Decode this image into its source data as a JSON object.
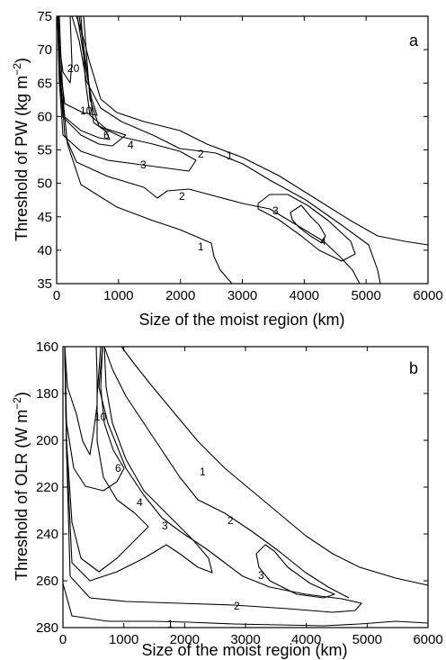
{
  "chart_data": [
    {
      "type": "contour",
      "panel_label": "a",
      "xlabel": "Size of the moist region (km)",
      "ylabel": "Threshold of PW (kg m^-2)",
      "xlim": [
        0,
        6000
      ],
      "ylim": [
        35,
        75
      ],
      "xticks": [
        "0",
        "1000",
        "2000",
        "3000",
        "4000",
        "5000",
        "6000"
      ],
      "yticks": [
        "35",
        "40",
        "45",
        "50",
        "55",
        "60",
        "65",
        "70",
        "75"
      ],
      "contours": [
        {
          "level": "1",
          "lines": [
            [
              [
                20,
                75
              ],
              [
                40,
                60
              ],
              [
                90,
                52
              ],
              [
                300,
                48
              ],
              [
                800,
                45
              ],
              [
                1500,
                43
              ],
              [
                2000,
                41
              ],
              [
                2300,
                40
              ],
              [
                2600,
                38.5
              ],
              [
                2900,
                35
              ]
            ],
            [
              [
                330,
                75
              ],
              [
                600,
                69
              ],
              [
                1000,
                64
              ],
              [
                1500,
                61
              ],
              [
                2000,
                58.5
              ],
              [
                2500,
                56
              ],
              [
                3000,
                54
              ],
              [
                3500,
                51
              ],
              [
                4000,
                47.5
              ],
              [
                4500,
                44.5
              ],
              [
                5000,
                42
              ],
              [
                5500,
                41
              ],
              [
                6000,
                40
              ]
            ]
          ],
          "labels": [
            [
              2300,
              40.8
            ],
            [
              2700,
              56.2
            ]
          ]
        },
        {
          "level": "2",
          "lines": [
            [
              [
                10,
                75
              ],
              [
                40,
                60
              ],
              [
                100,
                55
              ],
              [
                400,
                52
              ],
              [
                1000,
                49
              ],
              [
                1400,
                48
              ],
              [
                1600,
                46.5
              ],
              [
                1700,
                49
              ],
              [
                2100,
                48
              ],
              [
                2500,
                47
              ],
              [
                3000,
                46
              ],
              [
                3400,
                45
              ],
              [
                4000,
                41.5
              ],
              [
                4600,
                38
              ],
              [
                5000,
                37
              ],
              [
                5300,
                35
              ]
            ],
            [
              [
                260,
                75
              ],
              [
                500,
                67
              ],
              [
                900,
                61
              ],
              [
                1500,
                58
              ],
              [
                2000,
                56.5
              ],
              [
                2400,
                55.5
              ],
              [
                2800,
                54
              ],
              [
                3200,
                51.5
              ],
              [
                3800,
                48
              ],
              [
                4400,
                44.5
              ],
              [
                5000,
                41.5
              ],
              [
                5500,
                39
              ],
              [
                5900,
                35
              ]
            ]
          ],
          "labels": [
            [
              2000,
              47.2
            ],
            [
              2200,
              55.3
            ]
          ]
        },
        {
          "level": "3",
          "lines": [
            [
              [
                5,
                75
              ],
              [
                30,
                60
              ],
              [
                100,
                56
              ],
              [
                500,
                53
              ],
              [
                1000,
                53
              ],
              [
                1500,
                52.5
              ],
              [
                2000,
                52
              ],
              [
                2200,
                51.5
              ],
              [
                1900,
                54
              ],
              [
                1400,
                55.5
              ],
              [
                800,
                57
              ],
              [
                300,
                60
              ],
              [
                150,
                75
              ]
            ],
            [
              [
                3400,
                46.5
              ],
              [
                3700,
                47
              ],
              [
                4200,
                45
              ],
              [
                4600,
                41
              ],
              [
                4400,
                39
              ],
              [
                4000,
                40.5
              ],
              [
                3600,
                44
              ],
              [
                3400,
                46.5
              ]
            ]
          ],
          "labels": [
            [
              1400,
              53.4
            ],
            [
              3500,
              44.2
            ]
          ]
        },
        {
          "level": "4",
          "lines": [
            [
              [
                3
              ],
              [
                75
              ]
            ]
          ],
          "labels": [
            [
              1200,
              55.6
            ],
            [
              4200,
              40.6
            ]
          ]
        },
        {
          "level": "6",
          "lines": [],
          "labels": [
            [
              850,
              57.7
            ]
          ]
        },
        {
          "level": "10",
          "lines": [],
          "labels": [
            [
              480,
              61.2
            ]
          ]
        },
        {
          "level": "20",
          "lines": [],
          "labels": [
            [
              230,
              67.1
            ]
          ]
        }
      ]
    },
    {
      "type": "contour",
      "panel_label": "b",
      "xlabel": "Size of the moist region (km)",
      "ylabel": "Threshold of OLR (W m^-2)",
      "xlim": [
        0,
        6000
      ],
      "ylim": [
        280,
        160
      ],
      "xticks": [
        "0",
        "1000",
        "2000",
        "3000",
        "4000",
        "5000",
        "6000"
      ],
      "yticks": [
        "160",
        "180",
        "200",
        "220",
        "240",
        "260",
        "280"
      ],
      "contour_levels": [
        "1",
        "2",
        "3",
        "4",
        "6",
        "10"
      ]
    }
  ]
}
